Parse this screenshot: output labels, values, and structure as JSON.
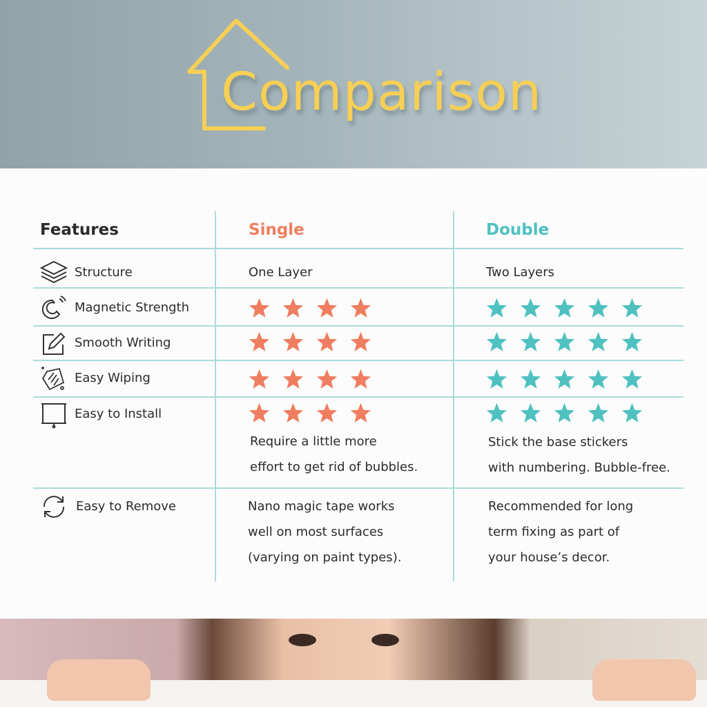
{
  "title": "Comparison",
  "colors": {
    "title": "#f7cf55",
    "single": "#ef7d5f",
    "double": "#4fc1c0",
    "grid": "#a8dcda"
  },
  "headers": {
    "features": "Features",
    "single": "Single",
    "double": "Double"
  },
  "rows": [
    {
      "feature": "Structure",
      "icon": "layers-icon",
      "single": "One Layer",
      "double": "Two Layers"
    },
    {
      "feature": "Magnetic Strength",
      "icon": "magnet-icon",
      "single_stars": 4,
      "double_stars": 5
    },
    {
      "feature": "Smooth Writing",
      "icon": "pencil-edit-icon",
      "single_stars": 4,
      "double_stars": 5
    },
    {
      "feature": "Easy Wiping",
      "icon": "wiping-hand-icon",
      "single_stars": 4,
      "double_stars": 5
    },
    {
      "feature": "Easy to Install",
      "icon": "projector-screen-icon",
      "single_stars": 4,
      "double_stars": 5,
      "single_note": [
        "Require a little more",
        "effort to get rid of bubbles."
      ],
      "double_note": [
        "Stick the base stickers",
        "with numbering. Bubble-free."
      ]
    },
    {
      "feature": "Easy to Remove",
      "icon": "refresh-icon",
      "single": [
        "Nano magic tape works",
        "well on most surfaces",
        "(varying on paint types)."
      ],
      "double": [
        "Recommended for long",
        "term fixing as part of",
        "your house’s decor."
      ]
    }
  ]
}
